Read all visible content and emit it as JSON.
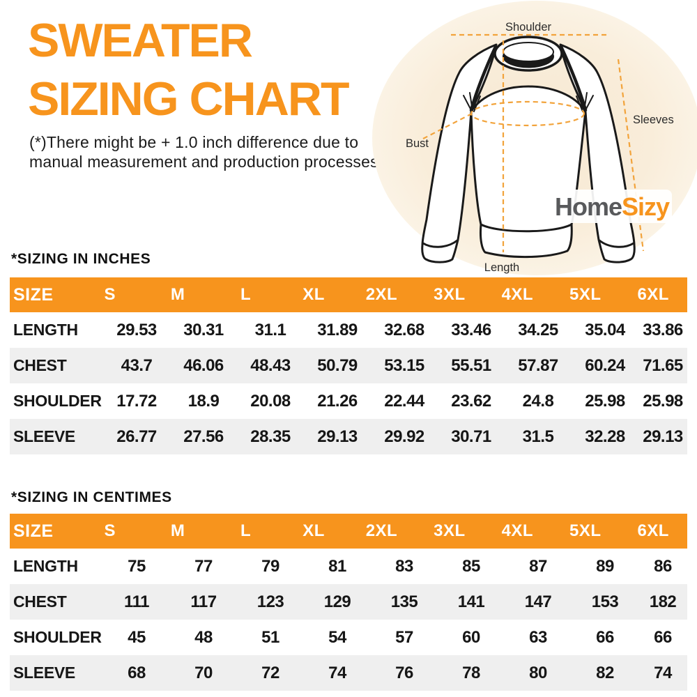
{
  "header": {
    "title_line1": "SWEATER",
    "title_line2": "SIZING CHART",
    "disclaimer_line1": "(*)There might be + 1.0 inch difference due to",
    "disclaimer_line2": "manual measurement and production processes"
  },
  "logo": {
    "part1": "Home",
    "part2": "Sizy"
  },
  "diagram": {
    "labels": {
      "shoulder": "Shoulder",
      "sleeves": "Sleeves",
      "bust": "Bust",
      "length": "Length"
    }
  },
  "colors": {
    "accent_orange": "#F7941D",
    "row_alt_gray": "#EFEFEF",
    "logo_gray": "#58595B",
    "dash_orange": "#F2A33B",
    "circle_cream": "#F9EDDA"
  },
  "tables": [
    {
      "section_title": "*SIZING IN INCHES",
      "columns": [
        "SIZE",
        "S",
        "M",
        "L",
        "XL",
        "2XL",
        "3XL",
        "4XL",
        "5XL",
        "6XL"
      ],
      "rows": [
        {
          "label": "LENGTH",
          "values": [
            "29.53",
            "30.31",
            "31.1",
            "31.89",
            "32.68",
            "33.46",
            "34.25",
            "35.04",
            "33.86"
          ]
        },
        {
          "label": "CHEST",
          "values": [
            "43.7",
            "46.06",
            "48.43",
            "50.79",
            "53.15",
            "55.51",
            "57.87",
            "60.24",
            "71.65"
          ]
        },
        {
          "label": "SHOULDER",
          "values": [
            "17.72",
            "18.9",
            "20.08",
            "21.26",
            "22.44",
            "23.62",
            "24.8",
            "25.98",
            "25.98"
          ]
        },
        {
          "label": "SLEEVE",
          "values": [
            "26.77",
            "27.56",
            "28.35",
            "29.13",
            "29.92",
            "30.71",
            "31.5",
            "32.28",
            "29.13"
          ]
        }
      ]
    },
    {
      "section_title": "*SIZING IN CENTIMES",
      "columns": [
        "SIZE",
        "S",
        "M",
        "L",
        "XL",
        "2XL",
        "3XL",
        "4XL",
        "5XL",
        "6XL"
      ],
      "rows": [
        {
          "label": "LENGTH",
          "values": [
            "75",
            "77",
            "79",
            "81",
            "83",
            "85",
            "87",
            "89",
            "86"
          ]
        },
        {
          "label": "CHEST",
          "values": [
            "111",
            "117",
            "123",
            "129",
            "135",
            "141",
            "147",
            "153",
            "182"
          ]
        },
        {
          "label": "SHOULDER",
          "values": [
            "45",
            "48",
            "51",
            "54",
            "57",
            "60",
            "63",
            "66",
            "66"
          ]
        },
        {
          "label": "SLEEVE",
          "values": [
            "68",
            "70",
            "72",
            "74",
            "76",
            "78",
            "80",
            "82",
            "74"
          ]
        }
      ]
    }
  ]
}
